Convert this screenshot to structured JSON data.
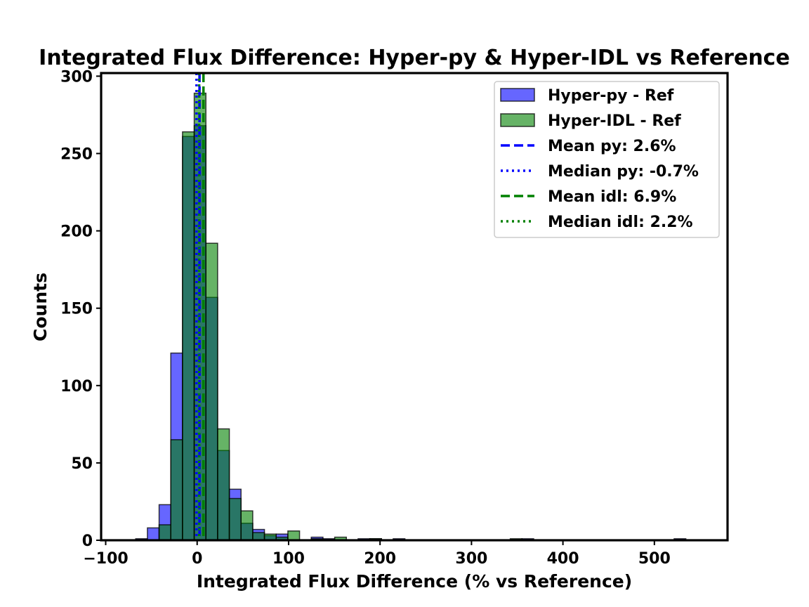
{
  "chart_data": {
    "type": "histogram",
    "title": "Integrated Flux Difference: Hyper-py & Hyper-IDL vs Reference",
    "xlabel": "Integrated Flux Difference (% vs Reference)",
    "ylabel": "Counts",
    "xlim": [
      -105,
      580
    ],
    "ylim": [
      0,
      302
    ],
    "xticks": [
      -100,
      0,
      100,
      200,
      300,
      400,
      500
    ],
    "yticks": [
      0,
      50,
      100,
      150,
      200,
      250,
      300
    ],
    "grid": false,
    "legend_position": "top-right",
    "series": [
      {
        "name": "Hyper-py - Ref",
        "color": "#0000ff",
        "alpha": 0.6,
        "bin_edges": [
          -80,
          -67.2,
          -54.4,
          -41.6,
          -28.8,
          -16,
          -3.2,
          9.6,
          22.4,
          35.2,
          48,
          60.8,
          73.6,
          86.4,
          99.2,
          112,
          124.8,
          137.6,
          150.4,
          163.2,
          176,
          188.8,
          201.6,
          214.4,
          227.2,
          240,
          252.8,
          265.6,
          278.4,
          291.2,
          304,
          316.8,
          329.6,
          342.4,
          355.2,
          368,
          380.8,
          393.6,
          406.4,
          419.2,
          432,
          444.8,
          457.6,
          470.4,
          483.2,
          496,
          508.8,
          521.6,
          534.4,
          547.2
        ],
        "counts": [
          0,
          1,
          8,
          23,
          121,
          261,
          268,
          157,
          58,
          33,
          11,
          7,
          3,
          4,
          0,
          0,
          2,
          1,
          0,
          0,
          1,
          1,
          0,
          1,
          0,
          0,
          0,
          0,
          0,
          0,
          0,
          0,
          0,
          0,
          1,
          0,
          0,
          0,
          0,
          0,
          0,
          0,
          0,
          0,
          0,
          0,
          0,
          1,
          0
        ]
      },
      {
        "name": "Hyper-IDL - Ref",
        "color": "#008000",
        "alpha": 0.6,
        "bin_edges": [
          -80,
          -67.2,
          -54.4,
          -41.6,
          -28.8,
          -16,
          -3.2,
          9.6,
          22.4,
          35.2,
          48,
          60.8,
          73.6,
          86.4,
          99.2,
          112,
          124.8,
          137.6,
          150.4,
          163.2,
          176,
          188.8,
          201.6,
          214.4,
          227.2,
          240,
          252.8,
          265.6,
          278.4,
          291.2,
          304,
          316.8,
          329.6,
          342.4,
          355.2,
          368,
          380.8,
          393.6,
          406.4,
          419.2,
          432,
          444.8,
          457.6,
          470.4,
          483.2,
          496,
          508.8,
          521.6,
          534.4,
          547.2
        ],
        "counts": [
          0,
          0,
          0,
          10,
          65,
          264,
          289,
          192,
          72,
          27,
          19,
          5,
          4,
          2,
          6,
          0,
          1,
          0,
          2,
          0,
          0,
          1,
          0,
          0,
          0,
          0,
          0,
          0,
          0,
          0,
          0,
          0,
          0,
          1,
          0,
          0,
          0,
          0,
          0,
          0,
          0,
          0,
          0,
          0,
          0,
          0,
          0,
          0,
          0
        ]
      }
    ],
    "lines": [
      {
        "label": "Mean py: 2.6%",
        "x": 2.6,
        "color": "#0000ff",
        "style": "dashed"
      },
      {
        "label": "Median py: -0.7%",
        "x": -0.7,
        "color": "#0000ff",
        "style": "dotted"
      },
      {
        "label": "Mean idl: 6.9%",
        "x": 6.9,
        "color": "#008000",
        "style": "dashed"
      },
      {
        "label": "Median idl: 2.2%",
        "x": 2.2,
        "color": "#008000",
        "style": "dotted"
      }
    ]
  }
}
